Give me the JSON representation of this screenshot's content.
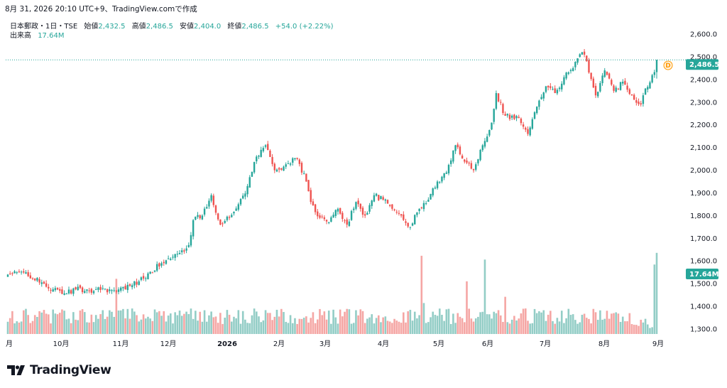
{
  "caption": "8月 31, 2026 20:10 UTC+9、TradingView.comで作成",
  "legend": {
    "symbol": "日本郵政・1日・TSE",
    "open_label": "始値",
    "open": "2,432.5",
    "high_label": "高値",
    "high": "2,486.5",
    "low_label": "安値",
    "low": "2,404.0",
    "close_label": "終値",
    "close": "2,486.5",
    "change": "+54.0 (+2.22%)",
    "volume_label": "出来高",
    "volume": "17.64M"
  },
  "price_badge": "2,486.5",
  "volume_badge": "17.64M",
  "d_marker": "D",
  "brand": "TradingView",
  "colors": {
    "up": "#26a69a",
    "down": "#ef5350",
    "up_vol": "#93cdc6",
    "down_vol": "#f5a6a4",
    "text": "#131722"
  },
  "chart_data": {
    "type": "candlestick",
    "y_ticks": [
      "2,600.0",
      "2,500.0",
      "2,400.0",
      "2,300.0",
      "2,200.0",
      "2,100.0",
      "2,000.0",
      "1,900.0",
      "1,800.0",
      "1,700.0",
      "1,600.0",
      "1,500.0",
      "1,400.0",
      "1,300.0"
    ],
    "y_tick_values": [
      2600,
      2500,
      2400,
      2300,
      2200,
      2100,
      2000,
      1900,
      1800,
      1700,
      1600,
      1500,
      1400,
      1300
    ],
    "x_ticks": [
      "月",
      "10月",
      "11月",
      "12月",
      "2026",
      "2月",
      "3月",
      "4月",
      "5月",
      "6月",
      "7月",
      "8月",
      "9月"
    ],
    "ylim": [
      1270,
      2625
    ],
    "last_close": 2486.5,
    "last_volume_label": "17.64M",
    "anchors_close": [
      [
        0,
        1540
      ],
      [
        8,
        1550
      ],
      [
        14,
        1505
      ],
      [
        20,
        1475
      ],
      [
        24,
        1455
      ],
      [
        30,
        1475
      ],
      [
        36,
        1470
      ],
      [
        42,
        1480
      ],
      [
        48,
        1465
      ],
      [
        54,
        1490
      ],
      [
        58,
        1510
      ],
      [
        62,
        1545
      ],
      [
        68,
        1590
      ],
      [
        72,
        1610
      ],
      [
        76,
        1635
      ],
      [
        80,
        1670
      ],
      [
        82,
        1780
      ],
      [
        86,
        1800
      ],
      [
        90,
        1890
      ],
      [
        94,
        1760
      ],
      [
        98,
        1790
      ],
      [
        102,
        1850
      ],
      [
        106,
        1930
      ],
      [
        110,
        2060
      ],
      [
        114,
        2110
      ],
      [
        118,
        2000
      ],
      [
        124,
        2030
      ],
      [
        128,
        2050
      ],
      [
        132,
        1950
      ],
      [
        134,
        1860
      ],
      [
        138,
        1790
      ],
      [
        142,
        1770
      ],
      [
        146,
        1830
      ],
      [
        150,
        1760
      ],
      [
        154,
        1860
      ],
      [
        158,
        1800
      ],
      [
        162,
        1890
      ],
      [
        166,
        1870
      ],
      [
        170,
        1830
      ],
      [
        174,
        1800
      ],
      [
        178,
        1750
      ],
      [
        182,
        1830
      ],
      [
        186,
        1870
      ],
      [
        190,
        1950
      ],
      [
        194,
        1990
      ],
      [
        198,
        2110
      ],
      [
        200,
        2070
      ],
      [
        204,
        2030
      ],
      [
        206,
        2000
      ],
      [
        210,
        2110
      ],
      [
        214,
        2210
      ],
      [
        216,
        2340
      ],
      [
        220,
        2240
      ],
      [
        226,
        2230
      ],
      [
        230,
        2160
      ],
      [
        234,
        2280
      ],
      [
        238,
        2370
      ],
      [
        242,
        2340
      ],
      [
        246,
        2410
      ],
      [
        250,
        2450
      ],
      [
        254,
        2520
      ],
      [
        256,
        2480
      ],
      [
        260,
        2330
      ],
      [
        264,
        2440
      ],
      [
        268,
        2350
      ],
      [
        272,
        2390
      ],
      [
        276,
        2330
      ],
      [
        280,
        2290
      ],
      [
        282,
        2360
      ],
      [
        286,
        2432.5
      ],
      [
        287,
        2486.5
      ]
    ],
    "volume_spikes": [
      [
        48,
        1.45
      ],
      [
        183,
        1.9
      ],
      [
        184,
        1.2
      ],
      [
        197,
        1.0
      ],
      [
        203,
        1.15
      ],
      [
        211,
        2.45
      ],
      [
        220,
        1.2
      ],
      [
        286,
        1.8
      ],
      [
        287,
        1.78
      ]
    ],
    "volume_unit_note": "",
    "grid": false,
    "legend_position": "top-left"
  }
}
